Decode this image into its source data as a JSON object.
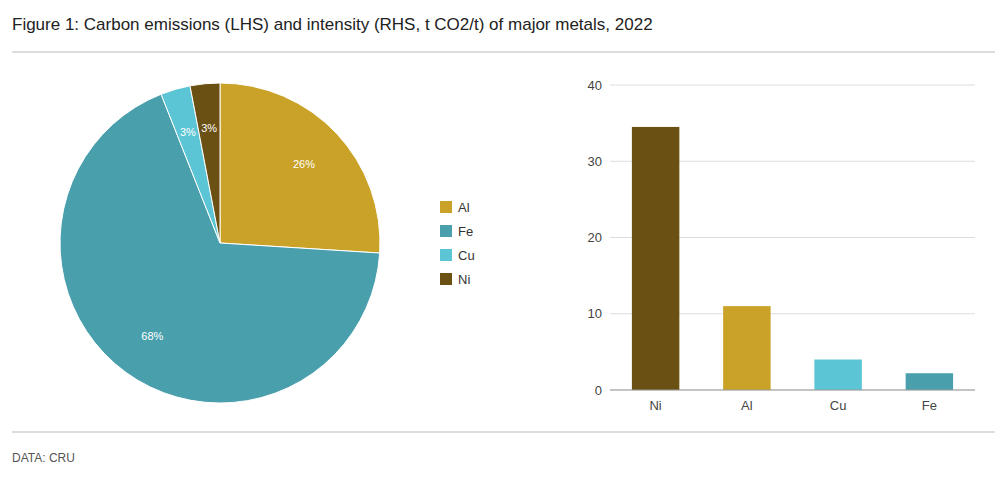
{
  "chart_data": [
    {
      "type": "pie",
      "title": "Figure 1: Carbon emissions (LHS) and intensity (RHS, t CO2/t) of major metals, 2022",
      "annotations": [
        "DATA: CRU"
      ],
      "categories": [
        "Al",
        "Fe",
        "Cu",
        "Ni"
      ],
      "values": [
        26,
        68,
        3,
        3
      ],
      "value_labels": [
        "26%",
        "68%",
        "3%",
        "3%"
      ],
      "colors": [
        "#C9A227",
        "#4A9FAD",
        "#5BC5D5",
        "#6B5013"
      ],
      "data_labels": true,
      "legend": "right"
    },
    {
      "type": "bar",
      "categories": [
        "Ni",
        "Al",
        "Cu",
        "Fe"
      ],
      "values": [
        34.5,
        11.0,
        4.0,
        2.2
      ],
      "colors": [
        "#6B5013",
        "#C9A227",
        "#5BC5D5",
        "#4A9FAD"
      ],
      "ylim": [
        0,
        40
      ],
      "yticks": [
        0,
        10,
        20,
        30,
        40
      ],
      "grid": true
    }
  ]
}
